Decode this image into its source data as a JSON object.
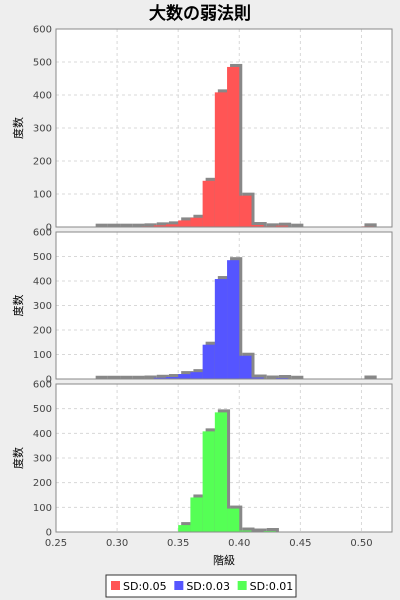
{
  "chart_data": [
    {
      "type": "bar",
      "title": "大数の弱法則",
      "ylabel": "度数",
      "xlabel": "",
      "ylim": [
        0,
        600
      ],
      "xlim": [
        0.25,
        0.525
      ],
      "yticks": [
        0,
        100,
        200,
        300,
        400,
        500,
        600
      ],
      "bin_width": 0.01,
      "series": [
        {
          "name": "SD:0.05",
          "color": "#ff5555",
          "bins": [
            {
              "x": 0.28,
              "value": 1
            },
            {
              "x": 0.29,
              "value": 1
            },
            {
              "x": 0.3,
              "value": 1
            },
            {
              "x": 0.31,
              "value": 1
            },
            {
              "x": 0.32,
              "value": 2
            },
            {
              "x": 0.33,
              "value": 5
            },
            {
              "x": 0.34,
              "value": 8
            },
            {
              "x": 0.35,
              "value": 20
            },
            {
              "x": 0.36,
              "value": 28
            },
            {
              "x": 0.37,
              "value": 140
            },
            {
              "x": 0.38,
              "value": 408
            },
            {
              "x": 0.39,
              "value": 485
            },
            {
              "x": 0.4,
              "value": 95
            },
            {
              "x": 0.41,
              "value": 6
            },
            {
              "x": 0.42,
              "value": 2
            },
            {
              "x": 0.43,
              "value": 4
            },
            {
              "x": 0.44,
              "value": 1
            },
            {
              "x": 0.5,
              "value": 2
            }
          ]
        }
      ]
    },
    {
      "type": "bar",
      "ylabel": "度数",
      "xlabel": "",
      "ylim": [
        0,
        600
      ],
      "xlim": [
        0.25,
        0.525
      ],
      "yticks": [
        0,
        100,
        200,
        300,
        400,
        500,
        600
      ],
      "bin_width": 0.01,
      "series": [
        {
          "name": "SD:0.03",
          "color": "#5555ff",
          "bins": [
            {
              "x": 0.28,
              "value": 1
            },
            {
              "x": 0.29,
              "value": 1
            },
            {
              "x": 0.3,
              "value": 1
            },
            {
              "x": 0.31,
              "value": 1
            },
            {
              "x": 0.32,
              "value": 2
            },
            {
              "x": 0.33,
              "value": 5
            },
            {
              "x": 0.34,
              "value": 8
            },
            {
              "x": 0.35,
              "value": 20
            },
            {
              "x": 0.36,
              "value": 28
            },
            {
              "x": 0.37,
              "value": 140
            },
            {
              "x": 0.38,
              "value": 408
            },
            {
              "x": 0.39,
              "value": 485
            },
            {
              "x": 0.4,
              "value": 95
            },
            {
              "x": 0.41,
              "value": 6
            },
            {
              "x": 0.42,
              "value": 2
            },
            {
              "x": 0.43,
              "value": 4
            },
            {
              "x": 0.44,
              "value": 1
            },
            {
              "x": 0.5,
              "value": 2
            }
          ]
        }
      ]
    },
    {
      "type": "bar",
      "ylabel": "度数",
      "xlabel": "階級",
      "ylim": [
        0,
        600
      ],
      "xlim": [
        0.25,
        0.525
      ],
      "yticks": [
        0,
        100,
        200,
        300,
        400,
        500,
        600
      ],
      "xticks": [
        "0.25",
        "0.30",
        "0.35",
        "0.40",
        "0.45",
        "0.50"
      ],
      "bin_width": 0.01,
      "series": [
        {
          "name": "SD:0.01",
          "color": "#55ff55",
          "bins": [
            {
              "x": 0.35,
              "value": 28
            },
            {
              "x": 0.36,
              "value": 140
            },
            {
              "x": 0.37,
              "value": 408
            },
            {
              "x": 0.38,
              "value": 485
            },
            {
              "x": 0.39,
              "value": 95
            },
            {
              "x": 0.4,
              "value": 6
            },
            {
              "x": 0.41,
              "value": 2
            },
            {
              "x": 0.42,
              "value": 4
            }
          ]
        }
      ]
    }
  ],
  "legend": {
    "placement": "bottom",
    "items": [
      {
        "label": "SD:0.05",
        "color": "#ff5555"
      },
      {
        "label": "SD:0.03",
        "color": "#5555ff"
      },
      {
        "label": "SD:0.01",
        "color": "#55ff55"
      }
    ]
  },
  "shadow_color": "#888888"
}
